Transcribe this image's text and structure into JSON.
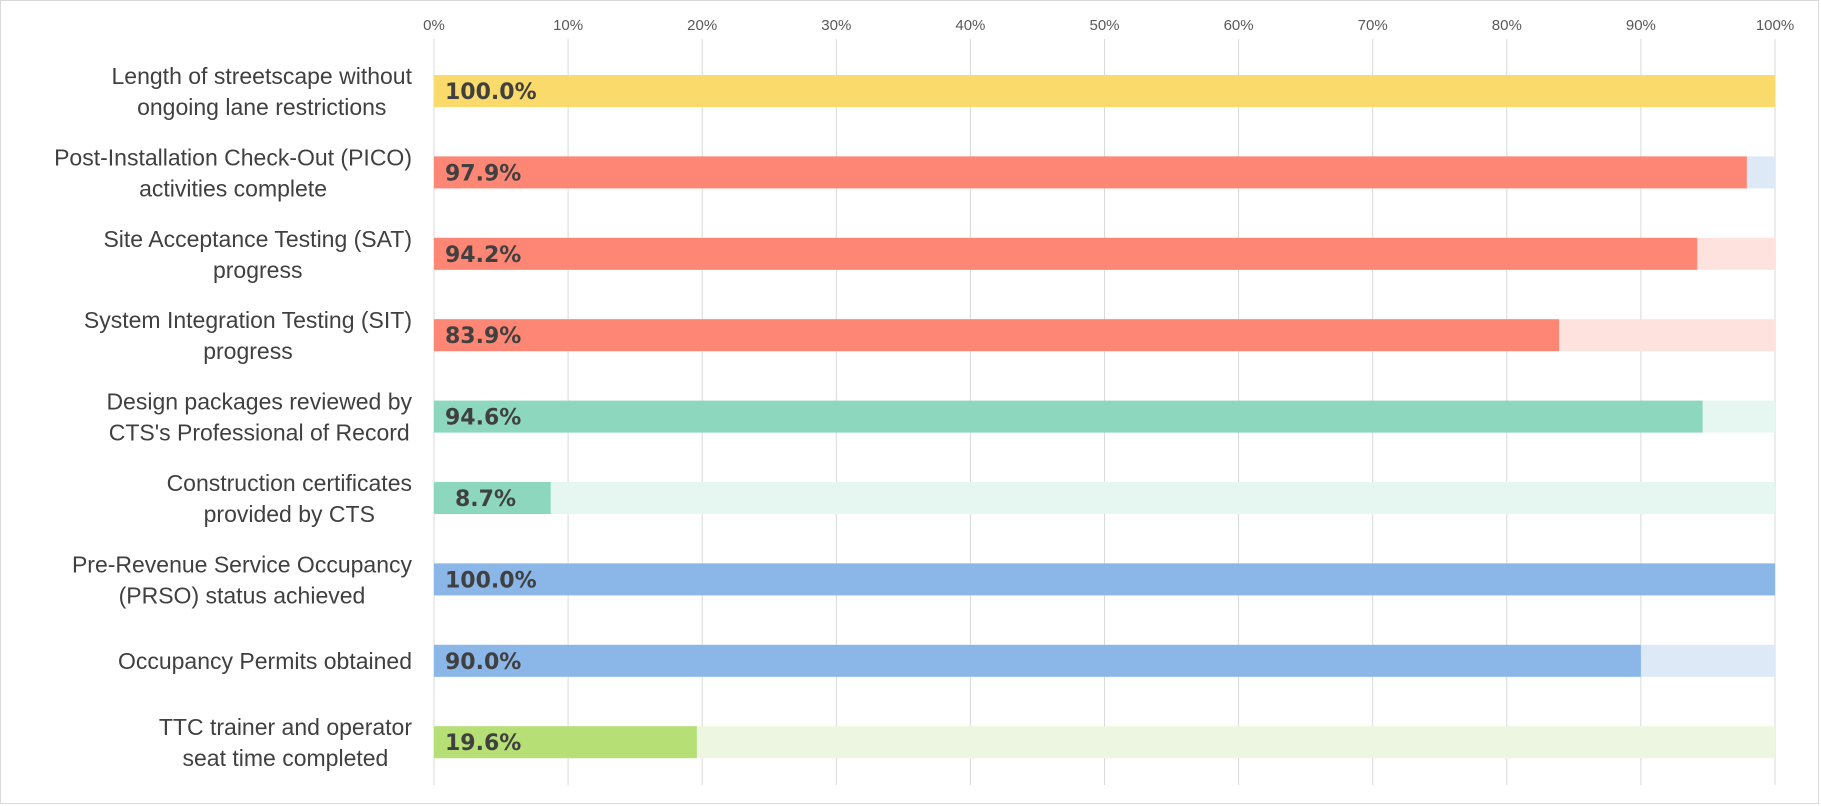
{
  "chart_data": {
    "type": "bar",
    "orientation": "horizontal",
    "xlim": [
      0,
      100
    ],
    "ticks": [
      "0%",
      "10%",
      "20%",
      "30%",
      "40%",
      "50%",
      "60%",
      "70%",
      "80%",
      "90%",
      "100%"
    ],
    "grid": true,
    "categories": [
      [
        "Length of streetscape without",
        "ongoing lane restrictions"
      ],
      [
        "Post-Installation Check-Out (PICO)",
        "activities complete"
      ],
      [
        "Site Acceptance Testing (SAT)",
        "progress"
      ],
      [
        "System Integration Testing (SIT)",
        "progress"
      ],
      [
        "Design packages reviewed by",
        "CTS's Professional of Record"
      ],
      [
        "Construction certificates",
        "provided by CTS"
      ],
      [
        "Pre-Revenue Service Occupancy",
        "(PRSO) status achieved"
      ],
      [
        "Occupancy Permits obtained"
      ],
      [
        "TTC trainer and operator",
        "seat time completed"
      ]
    ],
    "values": [
      100.0,
      97.9,
      94.2,
      83.9,
      94.6,
      8.7,
      100.0,
      90.0,
      19.6
    ],
    "labels": [
      "100.0%",
      "97.9%",
      "94.2%",
      "83.9%",
      "94.6%",
      "8.7%",
      "100.0%",
      "90.0%",
      "19.6%"
    ],
    "bar_colors": [
      "#f9da6b",
      "#fe8675",
      "#fe8675",
      "#fe8675",
      "#8dd7bf",
      "#8dd7bf",
      "#8ab6e8",
      "#8ab6e8",
      "#b6df76"
    ],
    "track_colors": [
      "#fdf1c4",
      "#dde9f6",
      "#fde2de",
      "#fde2de",
      "#e6f6f0",
      "#e6f6f0",
      "#dde9f6",
      "#dde9f6",
      "#edf6e0"
    ],
    "grid_color": "#d9d9d9"
  }
}
